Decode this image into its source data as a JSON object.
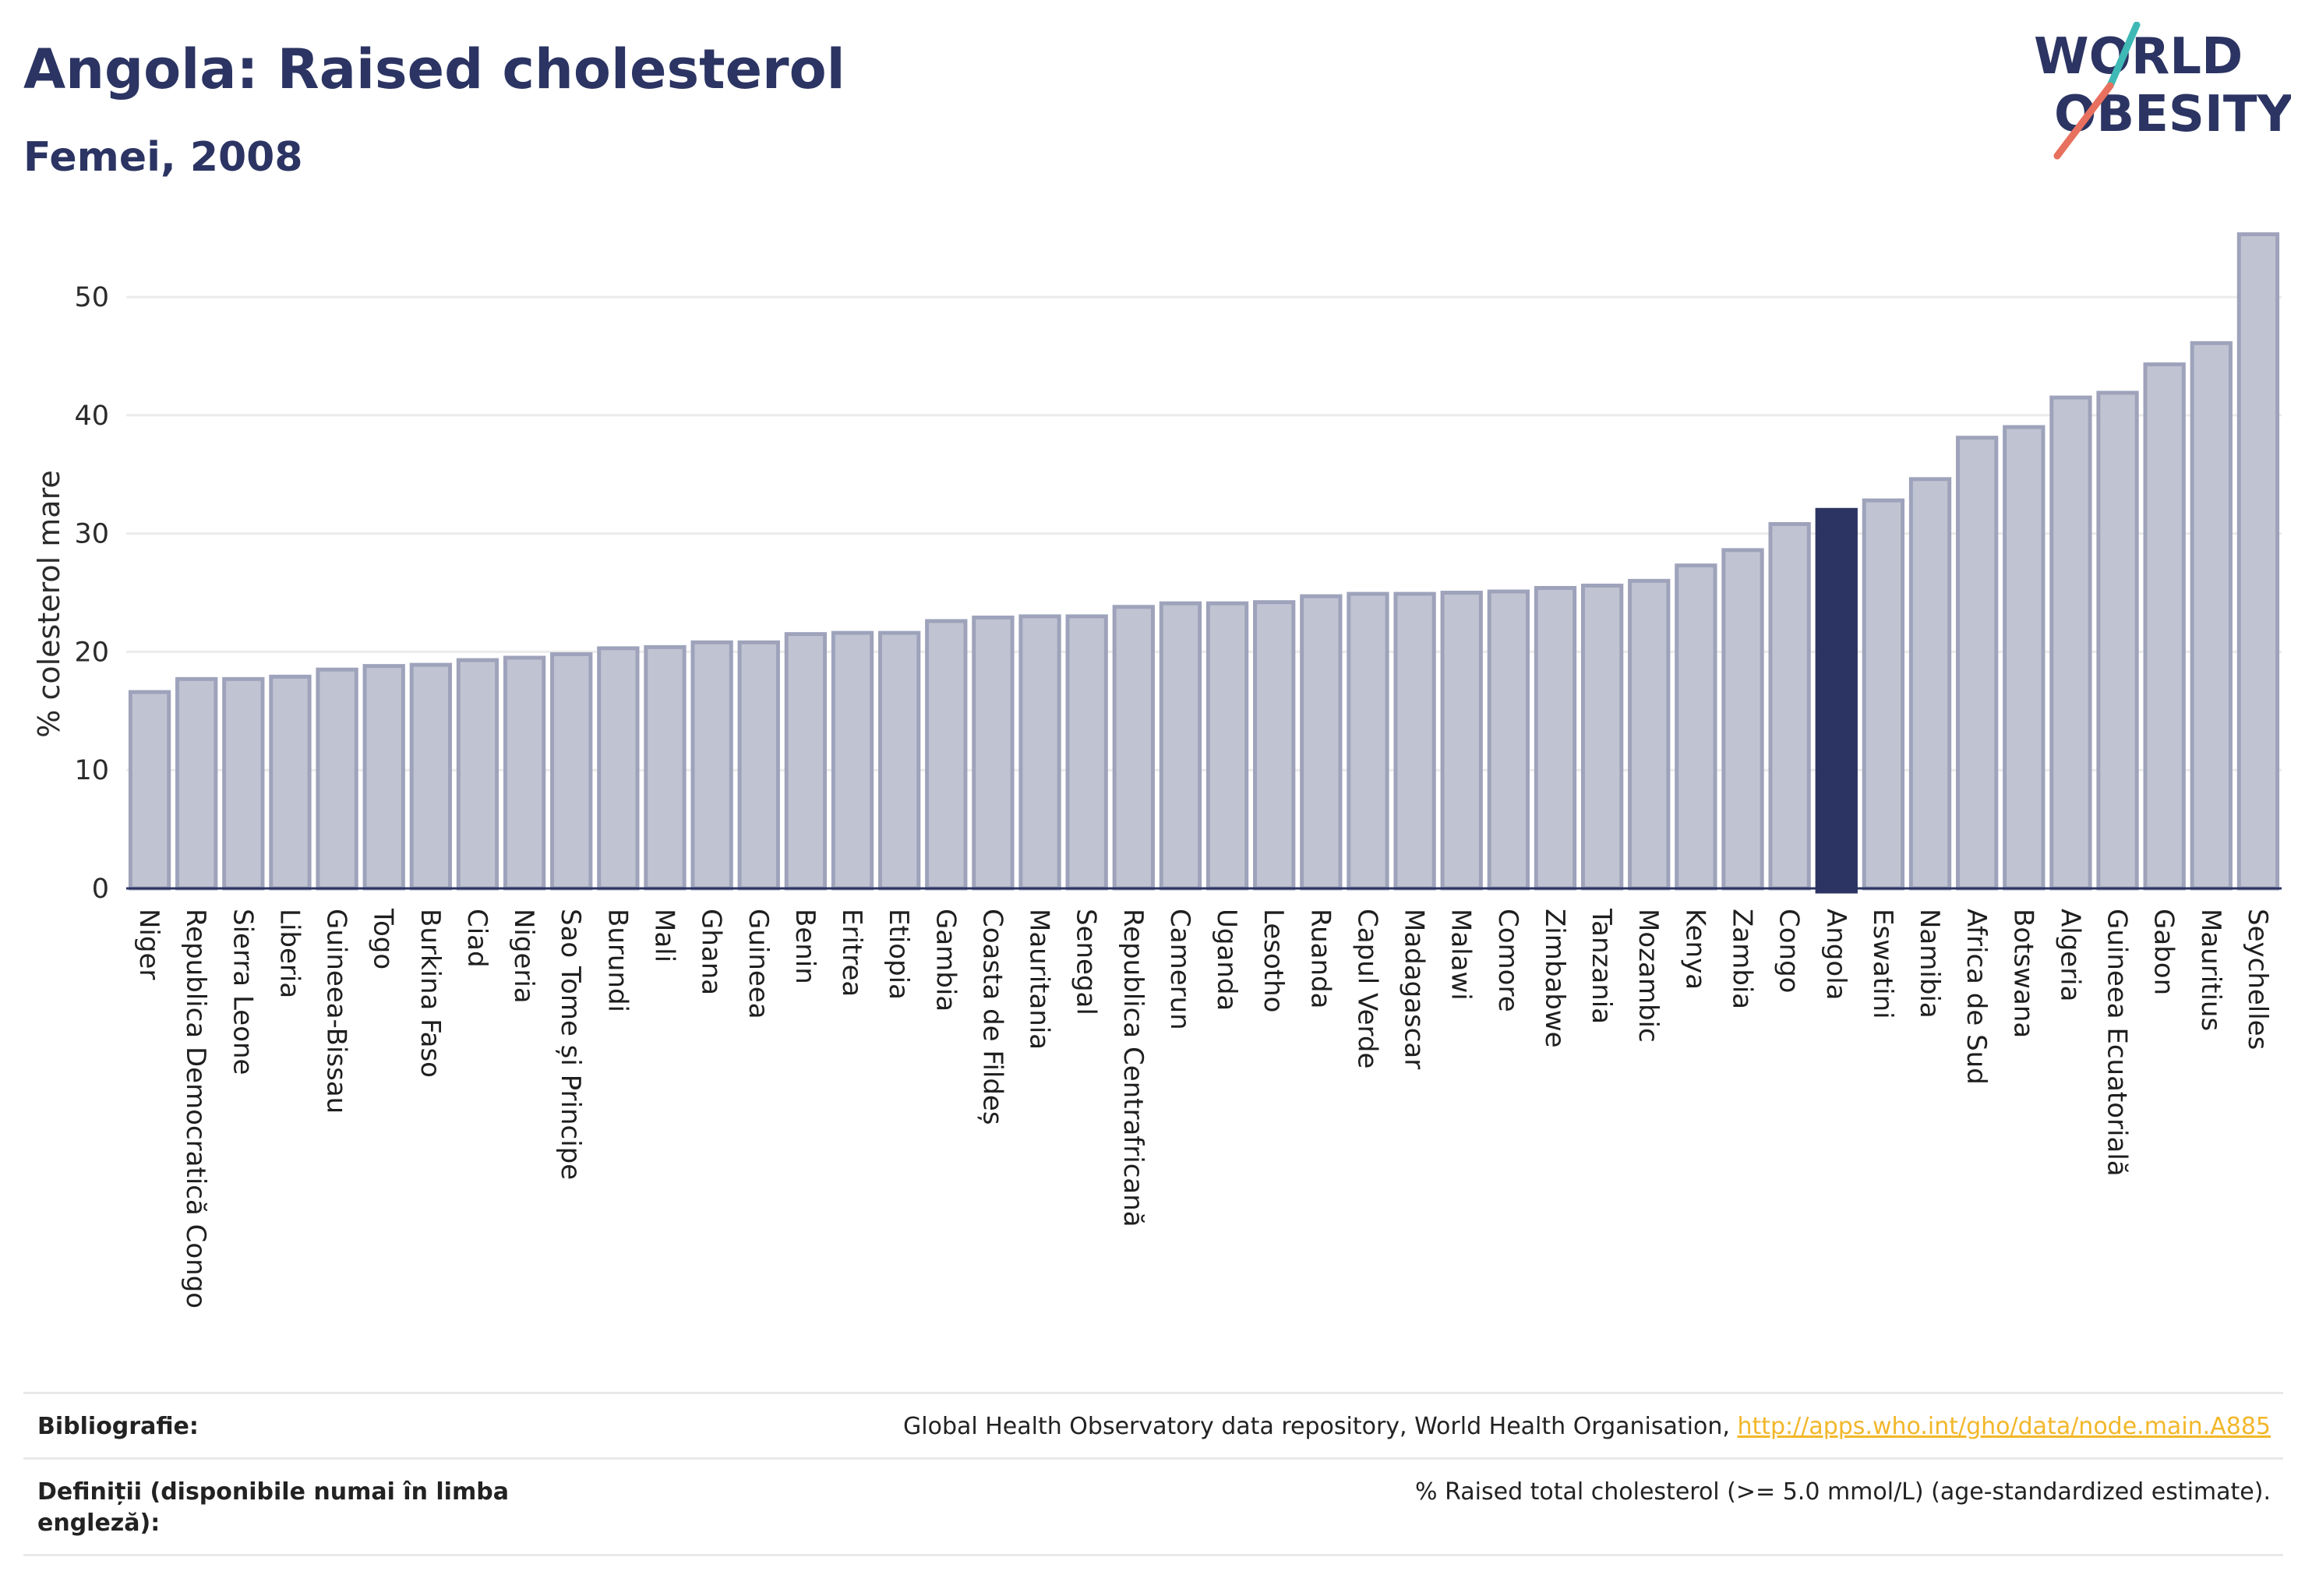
{
  "header": {
    "title": "Angola: Raised cholesterol",
    "subtitle": "Femei, 2008"
  },
  "logo": {
    "line1": "WORLD",
    "line2": "OBESITY",
    "colors": {
      "text": "#2b3462",
      "slash_teal": "#3fb9b5",
      "slash_coral": "#e8705e"
    }
  },
  "colors": {
    "bar_fill": "#c0c4d2",
    "bar_stroke": "#9ea3bb",
    "highlight": "#2b3462",
    "grid": "#ebebeb",
    "baseline": "#2b3462"
  },
  "chart_data": {
    "type": "bar",
    "ylabel": "% colesterol mare",
    "ylim": [
      0,
      56
    ],
    "yticks": [
      0,
      10,
      20,
      30,
      40,
      50
    ],
    "grid": true,
    "highlight": "Angola",
    "categories": [
      "Niger",
      "Republica Democratică Congo",
      "Sierra Leone",
      "Liberia",
      "Guineea-Bissau",
      "Togo",
      "Burkina Faso",
      "Ciad",
      "Nigeria",
      "Sao Tome și Principe",
      "Burundi",
      "Mali",
      "Ghana",
      "Guineea",
      "Benin",
      "Eritrea",
      "Etiopia",
      "Gambia",
      "Coasta de Fildeș",
      "Mauritania",
      "Senegal",
      "Republica Centrafricană",
      "Camerun",
      "Uganda",
      "Lesotho",
      "Ruanda",
      "Capul Verde",
      "Madagascar",
      "Malawi",
      "Comore",
      "Zimbabwe",
      "Tanzania",
      "Mozambic",
      "Kenya",
      "Zambia",
      "Congo",
      "Angola",
      "Eswatini",
      "Namibia",
      "Africa de Sud",
      "Botswana",
      "Algeria",
      "Guineea Ecuatorială",
      "Gabon",
      "Mauritius",
      "Seychelles"
    ],
    "values": [
      16.6,
      17.7,
      17.7,
      17.9,
      18.5,
      18.8,
      18.9,
      19.3,
      19.5,
      19.8,
      20.3,
      20.4,
      20.8,
      20.8,
      21.5,
      21.6,
      21.6,
      22.6,
      22.9,
      23.0,
      23.0,
      23.8,
      24.1,
      24.1,
      24.2,
      24.7,
      24.9,
      24.9,
      25.0,
      25.1,
      25.4,
      25.6,
      26.0,
      27.3,
      28.6,
      30.8,
      32.0,
      32.8,
      34.6,
      38.1,
      39.0,
      41.5,
      41.9,
      44.3,
      46.1,
      55.3
    ]
  },
  "footer": {
    "bibliography_label": "Bibliografie:",
    "bibliography_text": "Global Health Observatory data repository, World Health Organisation, ",
    "bibliography_link": "http://apps.who.int/gho/data/node.main.A885",
    "definitions_label": "Definiții (disponibile numai în limba engleză):",
    "definitions_text": "% Raised total cholesterol (>= 5.0 mmol/L) (age-standardized estimate)."
  }
}
